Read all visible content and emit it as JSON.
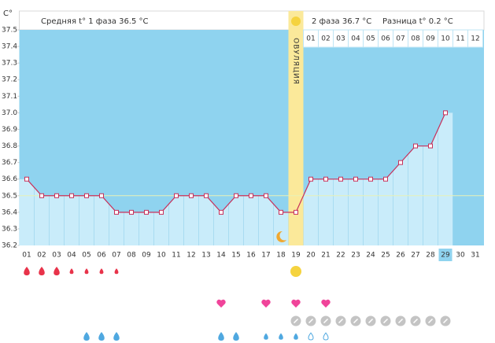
{
  "chart_data": {
    "type": "line",
    "unit_label": "C°",
    "header": {
      "phase1": "Средняя t° 1 фаза 36.5 °C",
      "phase2": "2 фаза 36.7 °C",
      "difference": "Разница t° 0.2 °C"
    },
    "ovulation_label": "ОВУЛЯЦИЯ",
    "categories": [
      "01",
      "02",
      "03",
      "04",
      "05",
      "06",
      "07",
      "08",
      "09",
      "10",
      "11",
      "12",
      "13",
      "14",
      "15",
      "16",
      "17",
      "18",
      "19",
      "20",
      "21",
      "22",
      "23",
      "24",
      "25",
      "26",
      "27",
      "28",
      "29",
      "30",
      "31"
    ],
    "values": [
      36.6,
      36.5,
      36.5,
      36.5,
      36.5,
      36.5,
      36.4,
      36.4,
      36.4,
      36.4,
      36.5,
      36.5,
      36.5,
      36.4,
      36.5,
      36.5,
      36.5,
      36.4,
      36.4,
      36.6,
      36.6,
      36.6,
      36.6,
      36.6,
      36.6,
      36.7,
      36.8,
      36.8,
      37.0,
      null,
      null
    ],
    "phase2_days": [
      "01",
      "02",
      "03",
      "04",
      "05",
      "06",
      "07",
      "08",
      "09",
      "10",
      "11",
      "12"
    ],
    "phase1_mean": 36.5,
    "color": "#c8305a",
    "fill_color": "#c9ecfa",
    "background_color": "#8fd3ef",
    "ylim": [
      36.2,
      37.5
    ],
    "yticks": [
      36.2,
      36.3,
      36.4,
      36.5,
      36.6,
      36.7,
      36.8,
      36.9,
      {
        "value": 37,
        "label": "37.0"
      },
      37.1,
      37.2,
      37.3,
      37.4,
      37.5
    ],
    "grid": false
  }
}
